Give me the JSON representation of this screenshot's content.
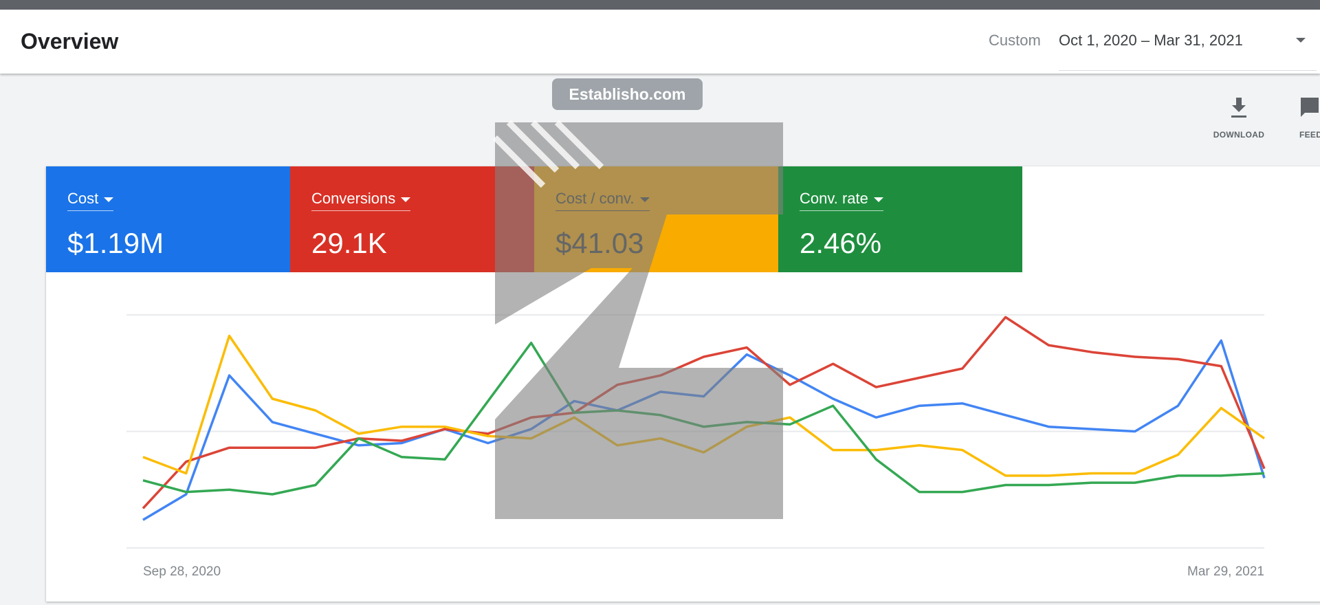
{
  "header": {
    "title": "Overview",
    "date_preset": "Custom",
    "date_range": "Oct 1, 2020 – Mar 31, 2021"
  },
  "toolbar": {
    "download_label": "DOWNLOAD",
    "feedback_label": "FEEDBACK",
    "download_icon": "download-icon",
    "feedback_icon": "feedback-icon"
  },
  "metrics": [
    {
      "label": "Cost",
      "value": "$1.19M",
      "color": "#1a73e8"
    },
    {
      "label": "Conversions",
      "value": "29.1K",
      "color": "#d93025"
    },
    {
      "label": "Cost / conv.",
      "value": "$41.03",
      "color": "#f9ab00"
    },
    {
      "label": "Conv. rate",
      "value": "2.46%",
      "color": "#1e8e3e"
    }
  ],
  "watermark": {
    "text": "Establisho.com"
  },
  "chart_data": {
    "type": "line",
    "x_tick_labels": [
      "Sep 28, 2020",
      "Mar 29, 2021"
    ],
    "x_points": 27,
    "grid": true,
    "y_gridlines": 3,
    "ylim": [
      0,
      100
    ],
    "series": [
      {
        "name": "Cost",
        "color": "#4285f4",
        "values": [
          12,
          23,
          74,
          54,
          49,
          44,
          45,
          51,
          45,
          51,
          63,
          59,
          67,
          65,
          83,
          74,
          64,
          56,
          61,
          62,
          57,
          52,
          51,
          50,
          61,
          89,
          30
        ]
      },
      {
        "name": "Conversions",
        "color": "#db4437",
        "values": [
          17,
          37,
          43,
          43,
          43,
          47,
          46,
          51,
          49,
          56,
          58,
          70,
          74,
          82,
          86,
          70,
          79,
          69,
          73,
          77,
          99,
          87,
          84,
          82,
          81,
          78,
          34
        ]
      },
      {
        "name": "Cost / conv.",
        "color": "#fbbc04",
        "values": [
          39,
          32,
          91,
          64,
          59,
          49,
          52,
          52,
          48,
          47,
          56,
          44,
          47,
          41,
          52,
          56,
          42,
          42,
          44,
          42,
          31,
          31,
          32,
          32,
          40,
          60,
          47
        ]
      },
      {
        "name": "Conv. rate",
        "color": "#34a853",
        "values": [
          29,
          24,
          25,
          23,
          27,
          47,
          39,
          38,
          63,
          88,
          58,
          59,
          57,
          52,
          54,
          53,
          61,
          38,
          24,
          24,
          27,
          27,
          28,
          28,
          31,
          31,
          32
        ]
      }
    ]
  }
}
